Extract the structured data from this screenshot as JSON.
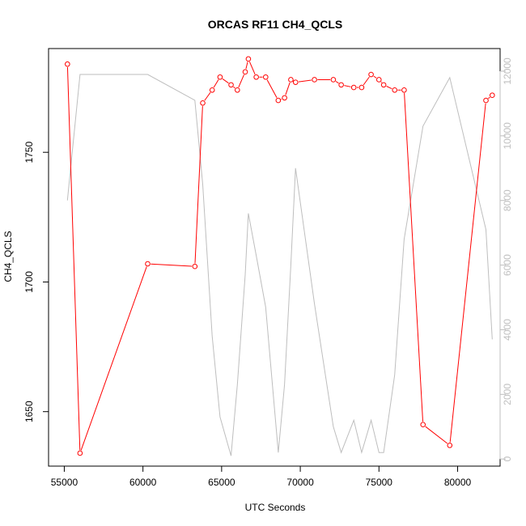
{
  "chart_data": {
    "type": "line",
    "title": "ORCAS RF11 CH4_QCLS",
    "xlabel": "UTC Seconds",
    "ylabel": "CH4_QCLS",
    "xlim": [
      54000,
      82700
    ],
    "ylim": [
      1629,
      1790
    ],
    "y2lim": [
      -220,
      12700
    ],
    "x_ticks": [
      55000,
      60000,
      65000,
      70000,
      75000,
      80000
    ],
    "y_ticks": [
      1650,
      1700,
      1750
    ],
    "y2_ticks": [
      0,
      2000,
      4000,
      6000,
      8000,
      10000,
      12000
    ],
    "grid": false,
    "series": [
      {
        "name": "",
        "color": "#ff0000",
        "axis": "left",
        "marker": "open-circle",
        "x": [
          55200,
          56000,
          60300,
          63300,
          63800,
          64400,
          64900,
          65600,
          66000,
          66500,
          66700,
          67200,
          67800,
          68600,
          69000,
          69400,
          69700,
          70900,
          72100,
          72600,
          73400,
          73900,
          74500,
          75000,
          75300,
          76000,
          76600,
          77800,
          79500,
          81800,
          82200
        ],
        "y": [
          1784,
          1634,
          1707,
          1706,
          1769,
          1774,
          1779,
          1776,
          1774,
          1781,
          1786,
          1779,
          1779,
          1770,
          1771,
          1778,
          1777,
          1778,
          1778,
          1776,
          1775,
          1775,
          1780,
          1778,
          1776,
          1774,
          1774,
          1645,
          1637,
          1770,
          1772
        ]
      },
      {
        "name": "",
        "color": "#bebebe",
        "axis": "right",
        "marker": "none",
        "x": [
          55200,
          56000,
          60300,
          63300,
          63800,
          64400,
          64900,
          65600,
          66000,
          66500,
          66700,
          67200,
          67800,
          68600,
          69000,
          69400,
          69700,
          70900,
          72100,
          72600,
          73400,
          73900,
          74500,
          75000,
          75300,
          76000,
          76600,
          77800,
          79500,
          81800,
          82200
        ],
        "y": [
          8000,
          11900,
          11900,
          11100,
          8500,
          3800,
          1300,
          100,
          2300,
          5700,
          7600,
          6300,
          4700,
          200,
          2300,
          6000,
          9000,
          4800,
          1000,
          200,
          1200,
          200,
          1200,
          200,
          200,
          2600,
          6800,
          10300,
          11800,
          7100,
          3700
        ]
      }
    ]
  }
}
